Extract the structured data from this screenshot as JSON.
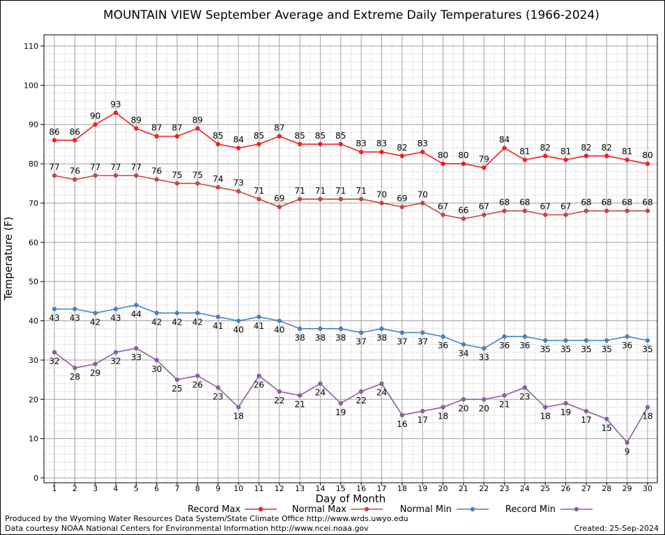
{
  "chart_data": {
    "type": "line",
    "title": "MOUNTAIN VIEW September Average and Extreme Daily Temperatures (1966-2024)",
    "xlabel": "Day of Month",
    "ylabel": "Temperature (F)",
    "xlim": [
      1,
      30
    ],
    "ylim": [
      0,
      110
    ],
    "y_ticks": [
      0,
      10,
      20,
      30,
      40,
      50,
      60,
      70,
      80,
      90,
      100,
      110
    ],
    "x": [
      1,
      2,
      3,
      4,
      5,
      6,
      7,
      8,
      9,
      10,
      11,
      12,
      13,
      14,
      15,
      16,
      17,
      18,
      19,
      20,
      21,
      22,
      23,
      24,
      25,
      26,
      27,
      28,
      29,
      30
    ],
    "grid": true,
    "legend_position": "bottom",
    "series": [
      {
        "name": "Record Max",
        "color": "#ee2222",
        "label_pos": "above",
        "values": [
          86,
          86,
          90,
          93,
          89,
          87,
          87,
          89,
          85,
          84,
          85,
          87,
          85,
          85,
          85,
          83,
          83,
          82,
          83,
          80,
          80,
          79,
          84,
          81,
          82,
          81,
          82,
          82,
          81,
          80
        ]
      },
      {
        "name": "Normal Max",
        "color": "#c04848",
        "label_pos": "above",
        "values": [
          77,
          76,
          77,
          77,
          77,
          76,
          75,
          75,
          74,
          73,
          71,
          69,
          71,
          71,
          71,
          71,
          70,
          69,
          70,
          67,
          66,
          67,
          68,
          68,
          67,
          67,
          68,
          68,
          68,
          68
        ]
      },
      {
        "name": "Normal Min",
        "color": "#4a82b8",
        "label_pos": "below",
        "values": [
          43,
          43,
          42,
          43,
          44,
          42,
          42,
          42,
          41,
          40,
          41,
          40,
          38,
          38,
          38,
          37,
          38,
          37,
          37,
          36,
          34,
          33,
          36,
          36,
          35,
          35,
          35,
          35,
          36,
          35
        ]
      },
      {
        "name": "Record Min",
        "color": "#8a5ea0",
        "label_pos": "below",
        "values": [
          32,
          28,
          29,
          32,
          33,
          30,
          25,
          26,
          23,
          18,
          26,
          22,
          21,
          24,
          19,
          22,
          24,
          16,
          17,
          18,
          20,
          20,
          21,
          23,
          18,
          19,
          17,
          15,
          9,
          18
        ]
      }
    ]
  },
  "footer": {
    "produced_by": "Produced by the Wyoming Water Resources Data System/State Climate Office http://www.wrds.uwyo.edu",
    "data_courtesy": "Data courtesy NOAA National Centers for Environmental Information http://www.ncei.noaa.gov",
    "created": "Created:  25-Sep-2024"
  }
}
